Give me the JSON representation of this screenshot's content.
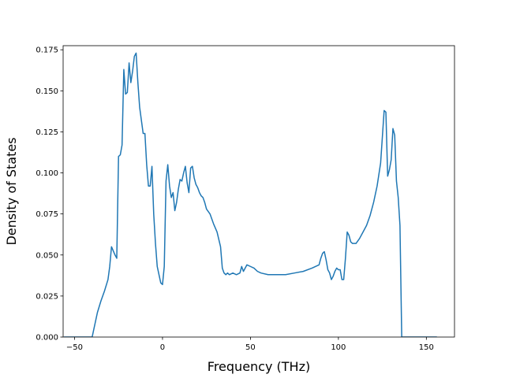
{
  "chart_data": {
    "type": "line",
    "title": "",
    "xlabel": "Frequency (THz)",
    "ylabel": "Density of States",
    "xlim": [
      -56.5,
      166
    ],
    "ylim": [
      0,
      0.1775
    ],
    "grid": false,
    "legend": "none",
    "x_ticks": [
      -50,
      0,
      50,
      100,
      150
    ],
    "y_ticks": [
      0.0,
      0.025,
      0.05,
      0.075,
      0.1,
      0.125,
      0.15,
      0.175
    ],
    "x_tick_labels": [
      "−50",
      "0",
      "50",
      "100",
      "150"
    ],
    "y_tick_labels": [
      "0.000",
      "0.025",
      "0.050",
      "0.075",
      "0.100",
      "0.125",
      "0.150",
      "0.175"
    ],
    "series": [
      {
        "color": "#1f77b4",
        "x": [
          -56,
          -40,
          -39,
          -37,
          -35,
          -33,
          -31,
          -30,
          -29,
          -27,
          -26,
          -25,
          -24,
          -23,
          -22,
          -21,
          -20,
          -19,
          -18,
          -17,
          -16,
          -15,
          -14,
          -13,
          -12,
          -11,
          -10,
          -9,
          -8,
          -7,
          -6,
          -5,
          -4,
          -3,
          -2,
          -1,
          0,
          1,
          2,
          3,
          4,
          5,
          6,
          7,
          8,
          9,
          10,
          11,
          12,
          13,
          14,
          15,
          16,
          17,
          18,
          19,
          20,
          21,
          22,
          23,
          24,
          25,
          27,
          29,
          31,
          33,
          34,
          35,
          36,
          37,
          38,
          40,
          42,
          44,
          45,
          46,
          48,
          50,
          52,
          54,
          56,
          60,
          65,
          70,
          75,
          80,
          85,
          89,
          90,
          91,
          92,
          93,
          94,
          95,
          96,
          97,
          98,
          99,
          100,
          101,
          102,
          103,
          104,
          105,
          106,
          107,
          108,
          110,
          112,
          114,
          116,
          118,
          120,
          122,
          124,
          125,
          126,
          127,
          128,
          129,
          130,
          131,
          132,
          133,
          134,
          135,
          136,
          137,
          138,
          139,
          140,
          156
        ],
        "y": [
          0.0,
          0.0,
          0.005,
          0.015,
          0.022,
          0.028,
          0.035,
          0.043,
          0.055,
          0.05,
          0.048,
          0.11,
          0.111,
          0.117,
          0.163,
          0.148,
          0.149,
          0.167,
          0.155,
          0.162,
          0.171,
          0.173,
          0.155,
          0.14,
          0.132,
          0.124,
          0.124,
          0.105,
          0.092,
          0.092,
          0.104,
          0.075,
          0.057,
          0.043,
          0.038,
          0.033,
          0.032,
          0.043,
          0.095,
          0.105,
          0.092,
          0.085,
          0.088,
          0.077,
          0.082,
          0.09,
          0.096,
          0.095,
          0.1,
          0.104,
          0.094,
          0.088,
          0.103,
          0.104,
          0.097,
          0.093,
          0.091,
          0.088,
          0.086,
          0.085,
          0.082,
          0.078,
          0.075,
          0.069,
          0.064,
          0.055,
          0.042,
          0.039,
          0.038,
          0.039,
          0.038,
          0.039,
          0.038,
          0.039,
          0.043,
          0.04,
          0.044,
          0.043,
          0.042,
          0.04,
          0.039,
          0.038,
          0.038,
          0.038,
          0.039,
          0.04,
          0.042,
          0.044,
          0.048,
          0.051,
          0.052,
          0.047,
          0.041,
          0.039,
          0.035,
          0.037,
          0.04,
          0.042,
          0.041,
          0.041,
          0.035,
          0.035,
          0.048,
          0.064,
          0.062,
          0.058,
          0.057,
          0.057,
          0.06,
          0.064,
          0.068,
          0.074,
          0.082,
          0.092,
          0.106,
          0.122,
          0.138,
          0.137,
          0.098,
          0.102,
          0.108,
          0.127,
          0.123,
          0.095,
          0.085,
          0.068,
          0.0,
          0.0,
          0.0,
          0.0,
          0.0,
          0.0
        ]
      }
    ]
  }
}
